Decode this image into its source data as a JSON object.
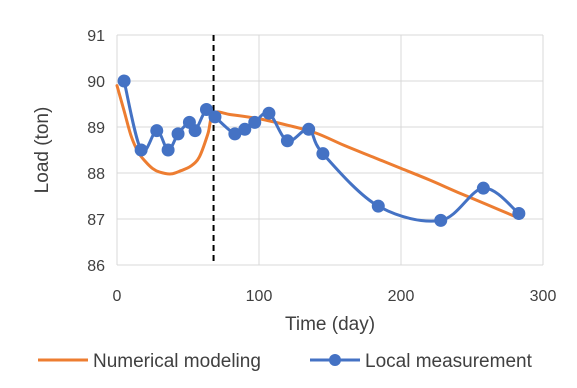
{
  "chart_data": {
    "type": "line",
    "title": "",
    "xlabel": "Time (day)",
    "ylabel": "Load (ton)",
    "xlim": [
      0,
      300
    ],
    "ylim": [
      86,
      91
    ],
    "x_ticks": [
      0,
      100,
      200,
      300
    ],
    "y_ticks": [
      86,
      87,
      88,
      89,
      90,
      91
    ],
    "grid": "horizontal and vertical",
    "legend_position": "bottom",
    "vertical_marker": {
      "x": 68,
      "style": "dashed",
      "color": "#000000"
    },
    "series": [
      {
        "name": "Numerical modeling",
        "color": "#ED7D31",
        "markers": false,
        "x": [
          0,
          5,
          10,
          15,
          20,
          25,
          30,
          38,
          45,
          52,
          58,
          64,
          68,
          80,
          100,
          120,
          140,
          160,
          180,
          200,
          220,
          240,
          260,
          283
        ],
        "y": [
          89.9,
          89.35,
          88.8,
          88.45,
          88.25,
          88.1,
          88.02,
          87.98,
          88.05,
          88.15,
          88.35,
          88.85,
          89.3,
          89.27,
          89.18,
          89.04,
          88.87,
          88.6,
          88.35,
          88.1,
          87.85,
          87.58,
          87.32,
          87.02
        ]
      },
      {
        "name": "Local measurement",
        "color": "#4472C4",
        "markers": true,
        "x": [
          5,
          17,
          28,
          36,
          43,
          51,
          55,
          63,
          69,
          83,
          90,
          97,
          107,
          120,
          135,
          145,
          184,
          228,
          258,
          283
        ],
        "y": [
          90.0,
          88.5,
          88.92,
          88.5,
          88.85,
          89.1,
          88.92,
          89.38,
          89.22,
          88.85,
          88.95,
          89.1,
          89.3,
          88.7,
          88.95,
          88.42,
          87.28,
          86.97,
          87.67,
          87.12
        ]
      }
    ]
  }
}
